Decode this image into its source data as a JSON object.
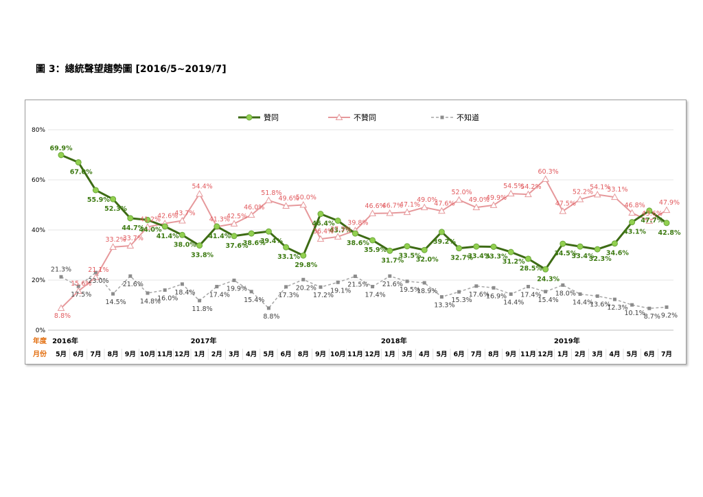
{
  "figure_title": "圖 3：總統聲望趨勢圖  [2016/5~2019/7]",
  "chart_data": {
    "type": "line",
    "ylim": [
      0,
      80
    ],
    "y_ticks": [
      "0%",
      "20%",
      "40%",
      "60%",
      "80%"
    ],
    "row_labels": {
      "year": "年度",
      "month": "月份"
    },
    "months": [
      "5月",
      "6月",
      "7月",
      "8月",
      "9月",
      "10月",
      "11月",
      "12月",
      "1月",
      "2月",
      "3月",
      "4月",
      "5月",
      "6月",
      "8月",
      "9月",
      "10月",
      "11月",
      "12月",
      "1月",
      "3月",
      "4月",
      "5月",
      "6月",
      "7月",
      "8月",
      "9月",
      "11月",
      "12月",
      "1月",
      "2月",
      "3月",
      "4月",
      "5月",
      "6月",
      "7月"
    ],
    "years": [
      {
        "label": "2016年",
        "index": 0
      },
      {
        "label": "2017年",
        "index": 8
      },
      {
        "label": "2018年",
        "index": 19
      },
      {
        "label": "2019年",
        "index": 29
      }
    ],
    "legend_position": "top-center",
    "series": [
      {
        "name": "贊同",
        "color": "#3d6b14",
        "marker_color": "#92d050",
        "label_color": "#3d7a12",
        "values": [
          69.9,
          67.0,
          55.9,
          52.3,
          44.7,
          44.0,
          41.4,
          38.0,
          33.8,
          41.4,
          37.6,
          38.6,
          39.4,
          33.1,
          29.8,
          46.4,
          43.7,
          38.6,
          35.9,
          31.7,
          33.5,
          32.0,
          39.2,
          32.7,
          33.4,
          33.3,
          31.2,
          28.5,
          24.3,
          34.5,
          33.4,
          32.3,
          34.6,
          43.1,
          47.7,
          42.8
        ],
        "labels": [
          "69.9%",
          "67.0%",
          "55.9%",
          "52.3%",
          "44.7%",
          "44.0%",
          "41.4%",
          "38.0%",
          "33.8%",
          "41.4%",
          "37.6%",
          "38.6%",
          "39.4%",
          "33.1%",
          "29.8%",
          "46.4%",
          "43.7%",
          "38.6%",
          "35.9%",
          "31.7%",
          "33.5%",
          "32.0%",
          "39.2%",
          "32.7%",
          "33.4%",
          "33.3%",
          "31.2%",
          "28.5%",
          "24.3%",
          "34.5%",
          "33.4%",
          "32.3%",
          "34.6%",
          "43.1%",
          "47.7%",
          "42.8%"
        ]
      },
      {
        "name": "不贊同",
        "color": "#e6989b",
        "marker_color": "#ffffff",
        "label_color": "#e15a5e",
        "values": [
          8.8,
          15.6,
          21.1,
          33.2,
          33.7,
          41.2,
          42.6,
          43.7,
          54.4,
          41.3,
          42.5,
          46.0,
          51.8,
          49.6,
          50.0,
          36.4,
          37.3,
          39.8,
          46.6,
          46.7,
          47.1,
          49.0,
          47.6,
          52.0,
          49.0,
          49.9,
          54.5,
          54.2,
          60.3,
          47.5,
          52.2,
          54.1,
          53.1,
          46.8,
          43.6,
          47.9
        ],
        "labels": [
          "8.8%",
          "15.6%",
          "21.1%",
          "33.2%",
          "33.7%",
          "41.2%",
          "42.6%",
          "43.7%",
          "54.4%",
          "41.3%",
          "42.5%",
          "46.0%",
          "51.8%",
          "49.6%",
          "50.0%",
          "36.4%",
          "37.3%",
          "39.8%",
          "46.6%",
          "46.7%",
          "47.1%",
          "49.0%",
          "47.6%",
          "52.0%",
          "49.0%",
          "49.9%",
          "54.5%",
          "54.2%",
          "60.3%",
          "47.5%",
          "52.2%",
          "54.1%",
          "53.1%",
          "46.8%",
          "43.6%",
          "47.9%"
        ]
      },
      {
        "name": "不知道",
        "color": "#a6a6a6",
        "marker_color": "#8c8c8c",
        "label_color": "#404040",
        "values": [
          21.3,
          17.5,
          23.0,
          14.5,
          21.6,
          14.8,
          16.0,
          18.4,
          11.8,
          17.4,
          19.9,
          15.4,
          8.8,
          17.3,
          20.2,
          17.2,
          19.1,
          21.5,
          17.4,
          21.6,
          19.5,
          18.9,
          13.3,
          15.3,
          17.6,
          16.9,
          14.4,
          17.4,
          15.4,
          18.0,
          14.4,
          13.6,
          12.3,
          10.1,
          8.7,
          9.2
        ],
        "labels": [
          "21.3%",
          "17.5%",
          "23.0%",
          "14.5%",
          "21.6%",
          "14.8%",
          "16.0%",
          "18.4%",
          "11.8%",
          "17.4%",
          "19.9%",
          "15.4%",
          "8.8%",
          "17.3%",
          "20.2%",
          "17.2%",
          "19.1%",
          "21.5%",
          "17.4%",
          "21.6%",
          "19.5%",
          "18.9%",
          "13.3%",
          "15.3%",
          "17.6%",
          "16.9%",
          "14.4%",
          "17.4%",
          "15.4%",
          "18.0%",
          "14.4%",
          "13.6%",
          "12.3%",
          "10.1%",
          "8.7%",
          "9.2%"
        ]
      }
    ]
  }
}
